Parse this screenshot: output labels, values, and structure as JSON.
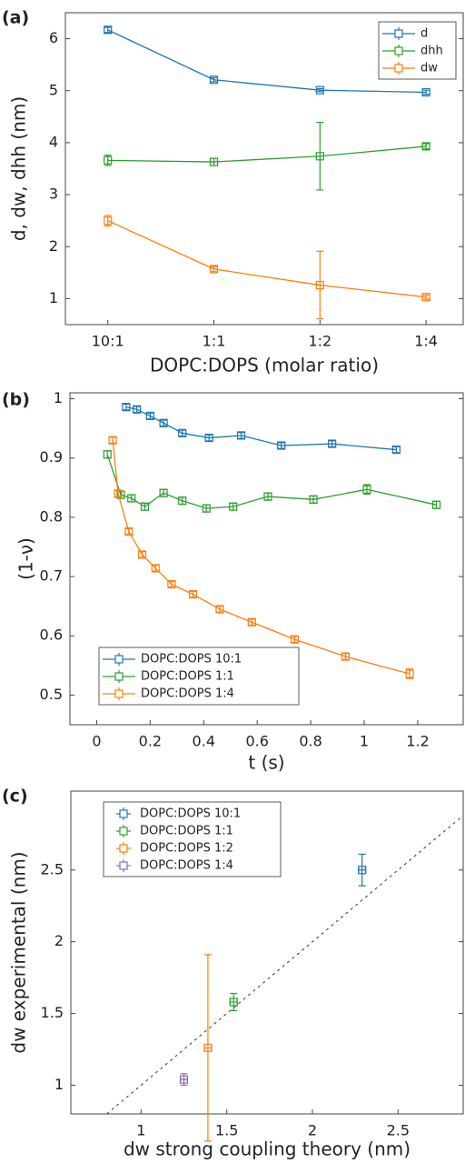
{
  "chart_data": [
    {
      "type": "line",
      "panel_label": "(a)",
      "categories": [
        "10:1",
        "1:1",
        "1:2",
        "1:4"
      ],
      "series": [
        {
          "name": "d",
          "color": "#1f77b4",
          "values": [
            6.17,
            5.21,
            5.01,
            4.97
          ],
          "errors": [
            0.05,
            0.04,
            0.03,
            0.04
          ]
        },
        {
          "name": "dhh",
          "color": "#2ca02c",
          "values": [
            3.66,
            3.63,
            3.74,
            3.93
          ],
          "errors": [
            0.1,
            0.07,
            0.65,
            0.05
          ]
        },
        {
          "name": "dw",
          "color": "#ff7f0e",
          "values": [
            2.5,
            1.57,
            1.26,
            1.03
          ],
          "errors": [
            0.1,
            0.05,
            0.65,
            0.04
          ]
        }
      ],
      "ylim": [
        0.5,
        6.5
      ],
      "yticks": [
        1,
        2,
        3,
        4,
        5,
        6
      ],
      "xlabel": "DOPC:DOPS (molar ratio)",
      "ylabel": "d, dw, dhh (nm)",
      "legend": "upper right"
    },
    {
      "type": "line",
      "panel_label": "(b)",
      "series": [
        {
          "name": "DOPC:DOPS 10:1",
          "color": "#1f77b4",
          "x": [
            0.11,
            0.15,
            0.2,
            0.25,
            0.32,
            0.42,
            0.54,
            0.69,
            0.88,
            1.12
          ],
          "values": [
            0.986,
            0.982,
            0.971,
            0.959,
            0.942,
            0.934,
            0.938,
            0.921,
            0.924,
            0.914
          ],
          "errors": [
            0.005,
            0.005,
            0.005,
            0.005,
            0.005,
            0.005,
            0.005,
            0.005,
            0.005,
            0.005
          ]
        },
        {
          "name": "DOPC:DOPS 1:1",
          "color": "#2ca02c",
          "x": [
            0.04,
            0.09,
            0.13,
            0.18,
            0.25,
            0.32,
            0.41,
            0.51,
            0.64,
            0.81,
            1.01,
            1.27
          ],
          "values": [
            0.906,
            0.838,
            0.832,
            0.818,
            0.841,
            0.828,
            0.815,
            0.818,
            0.835,
            0.83,
            0.847,
            0.821
          ],
          "errors": [
            0.006,
            0.006,
            0.006,
            0.006,
            0.006,
            0.006,
            0.006,
            0.006,
            0.006,
            0.006,
            0.008,
            0.006
          ]
        },
        {
          "name": "DOPC:DOPS 1:4",
          "color": "#ff7f0e",
          "x": [
            0.06,
            0.08,
            0.12,
            0.17,
            0.22,
            0.28,
            0.36,
            0.46,
            0.58,
            0.74,
            0.93,
            1.17
          ],
          "values": [
            0.93,
            0.84,
            0.776,
            0.737,
            0.714,
            0.687,
            0.67,
            0.645,
            0.623,
            0.594,
            0.565,
            0.536
          ],
          "errors": [
            0.005,
            0.005,
            0.005,
            0.005,
            0.005,
            0.005,
            0.005,
            0.005,
            0.005,
            0.005,
            0.005,
            0.008
          ]
        }
      ],
      "xlim": [
        -0.1,
        1.37
      ],
      "xticks": [
        0,
        0.2,
        0.4,
        0.6,
        0.8,
        1,
        1.2
      ],
      "ylim": [
        0.45,
        1.01
      ],
      "yticks": [
        0.5,
        0.6,
        0.7,
        0.8,
        0.9,
        1
      ],
      "xlabel": "t (s)",
      "ylabel": "(1-ν)",
      "legend": "lower left"
    },
    {
      "type": "scatter",
      "panel_label": "(c)",
      "series": [
        {
          "name": "DOPC:DOPS 10:1",
          "color": "#1f77b4",
          "x": [
            2.29
          ],
          "xerrors": [
            0.02
          ],
          "values": [
            2.5
          ],
          "errors": [
            0.11
          ]
        },
        {
          "name": "DOPC:DOPS 1:1",
          "color": "#2ca02c",
          "x": [
            1.54
          ],
          "xerrors": [
            0.02
          ],
          "values": [
            1.58
          ],
          "errors": [
            0.06
          ]
        },
        {
          "name": "DOPC:DOPS 1:2",
          "color": "#ff7f0e",
          "x": [
            1.39
          ],
          "xerrors": [
            0.02
          ],
          "values": [
            1.26
          ],
          "errors": [
            0.65
          ]
        },
        {
          "name": "DOPC:DOPS 1:4",
          "color": "#9467bd",
          "x": [
            1.25
          ],
          "xerrors": [
            0.02
          ],
          "values": [
            1.04
          ],
          "errors": [
            0.04
          ]
        }
      ],
      "identity_line": true,
      "xlim": [
        0.59,
        2.88
      ],
      "xticks": [
        1,
        1.5,
        2,
        2.5
      ],
      "ylim": [
        0.8,
        3.05
      ],
      "yticks": [
        1,
        1.5,
        2,
        2.5
      ],
      "xlabel": "dw strong coupling theory (nm)",
      "ylabel": "dw experimental (nm)",
      "legend": "upper left"
    }
  ]
}
